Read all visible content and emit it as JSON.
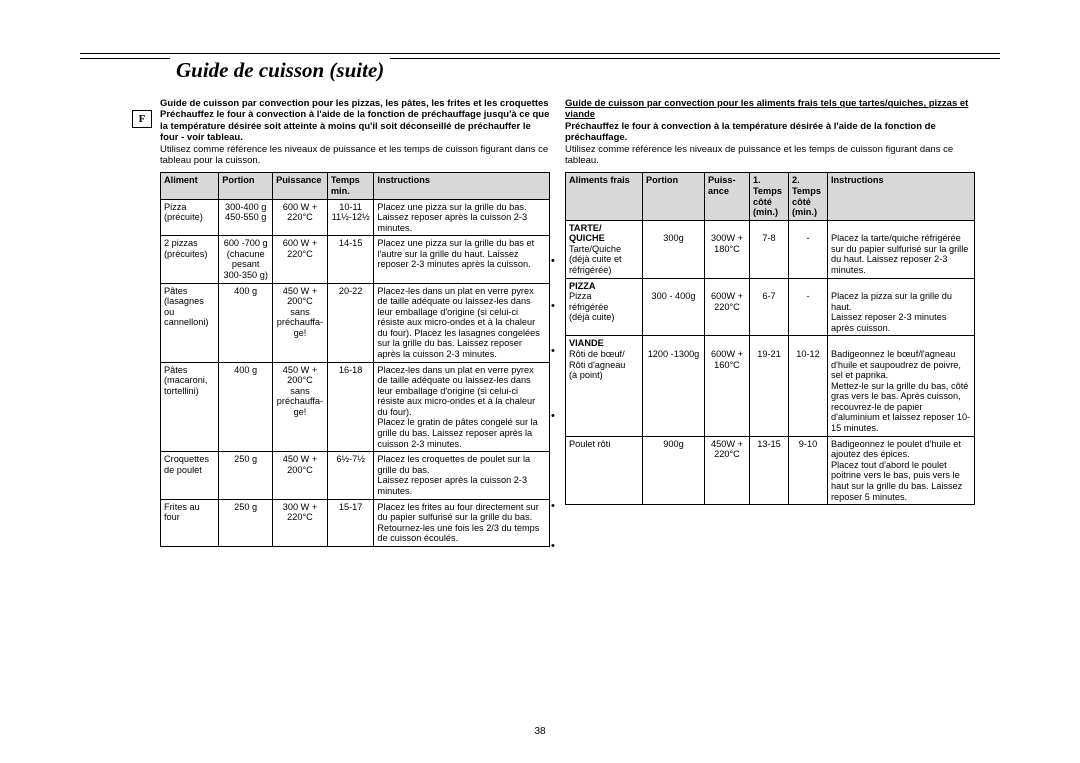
{
  "title": "Guide de cuisson (suite)",
  "page_number": "38",
  "lang_label": "F",
  "left": {
    "intro_bold": "Guide de cuisson par convection pour les pizzas, les pâtes, les frites et les croquettes\nPréchauffez le four à convection à l'aide de la fonction de préchauffage jusqu'à ce que la température désirée soit atteinte à moins qu'il soit déconseillé de préchauffer le four - voir tableau.",
    "intro_plain": "Utilisez comme référence les niveaux de puissance et les temps de cuisson figurant dans ce tableau pour la cuisson.",
    "headers": [
      "Aliment",
      "Portion",
      "Puissance",
      "Temps min.",
      "Instructions"
    ],
    "rows": [
      {
        "aliment": "Pizza\n(précuite)",
        "portion": "300-400 g\n450-550 g",
        "puissance": "600 W +\n220°C",
        "temps": "10-11\n11½-12½",
        "instr": "Placez une pizza sur la grille du bas.\nLaissez reposer après la cuisson 2-3 minutes."
      },
      {
        "aliment": "2 pizzas\n(précuites)",
        "portion": "600 -700 g\n(chacune pesant 300-350 g)",
        "puissance": "600 W +\n220°C",
        "temps": "14-15",
        "instr": "Placez une pizza sur la grille du bas et l'autre sur la grille du haut. Laissez reposer 2-3 minutes après la cuisson."
      },
      {
        "aliment": "Pâtes\n(lasagnes ou cannelloni)",
        "portion": "400 g",
        "puissance": "450 W +\n200°C\nsans\npréchauffa-ge!",
        "temps": "20-22",
        "instr": "Placez-les dans un plat en verre pyrex de taille adéquate ou laissez-les dans leur emballage d'origine (si celui-ci résiste aux micro-ondes et à la chaleur du four). Placez les lasagnes congelées sur la grille du bas. Laissez reposer après la cuisson 2-3 minutes."
      },
      {
        "aliment": "Pâtes\n(macaroni, tortellini)",
        "portion": "400 g",
        "puissance": "450 W +\n200°C\nsans\npréchauffa-ge!",
        "temps": "16-18",
        "instr": "Placez-les dans un plat en verre pyrex de taille adéquate ou laissez-les dans leur emballage d'origine (si celui-ci résiste aux micro-ondes et à la chaleur du four).\nPlacez le gratin de pâtes congelé sur la grille du bas. Laissez reposer après la cuisson 2-3 minutes."
      },
      {
        "aliment": "Croquettes de poulet",
        "portion": "250 g",
        "puissance": "450 W +\n200°C",
        "temps": "6½-7½",
        "instr": "Placez les croquettes de poulet sur la grille du bas.\nLaissez reposer après la cuisson 2-3 minutes."
      },
      {
        "aliment": "Frites au four",
        "portion": "250 g",
        "puissance": "300 W +\n220°C",
        "temps": "15-17",
        "instr": "Placez les frites au four directement sur du papier sulfurisé sur la grille du bas. Retournez-les une fois les 2/3 du temps de cuisson écoulés."
      }
    ]
  },
  "right": {
    "intro_bold_u": "Guide de cuisson par convection pour les aliments frais tels que tartes/quiches, pizzas et viande",
    "intro_bold": "Préchauffez le four à convection à la température désirée à l'aide de la fonction de préchauffage.",
    "intro_plain": "Utilisez comme référence les niveaux de puissance et les temps de cuisson figurant dans ce tableau.",
    "headers": [
      "Aliments frais",
      "Portion",
      "Puiss-\nance",
      "1.\nTemps côté (min.)",
      "2.\nTemps côté (min.)",
      "Instructions"
    ],
    "groups": [
      {
        "title": "TARTE/\nQUICHE",
        "rows": [
          {
            "a": "Tarte/Quiche\n(déjà cuite et réfrigérée)",
            "p": "300g",
            "w": "300W +\n180°C",
            "t1": "7-8",
            "t2": "-",
            "i": "Placez la tarte/quiche réfrigérée sur du papier sulfurisé sur la grille du haut. Laissez reposer 2-3 minutes."
          }
        ]
      },
      {
        "title": "PIZZA",
        "rows": [
          {
            "a": "Pizza\nréfrigérée\n(déjà cuite)",
            "p": "300 - 400g",
            "w": "600W +\n220°C",
            "t1": "6-7",
            "t2": "-",
            "i": "Placez la pizza sur la grille du haut.\nLaissez reposer 2-3 minutes après cuisson."
          }
        ]
      },
      {
        "title": "VIANDE",
        "rows": [
          {
            "a": "Rôti de bœuf/\nRôti d'agneau\n(à point)",
            "p": "1200 -1300g",
            "w": "600W +\n160°C",
            "t1": "19-21",
            "t2": "10-12",
            "i": "Badigeonnez le bœuf/l'agneau d'huile et saupoudrez de poivre, sel et paprika.\nMettez-le sur la grille du bas, côté gras vers le bas. Après cuisson, recouvrez-le de papier d'aluminium et laissez reposer 10-15 minutes."
          },
          {
            "a": "Poulet rôti",
            "p": "900g",
            "w": "450W +\n220°C",
            "t1": "13-15",
            "t2": "9-10",
            "i": "Badigeonnez le poulet d'huile et ajoutez des épices.\nPlacez tout d'abord le poulet poitrine vers le bas, puis vers le haut sur la grille du bas. Laissez reposer 5 minutes."
          }
        ]
      }
    ]
  }
}
